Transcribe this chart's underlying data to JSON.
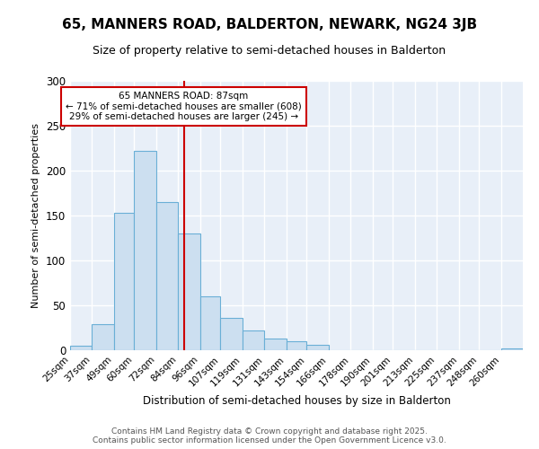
{
  "title": "65, MANNERS ROAD, BALDERTON, NEWARK, NG24 3JB",
  "subtitle": "Size of property relative to semi-detached houses in Balderton",
  "xlabel": "Distribution of semi-detached houses by size in Balderton",
  "ylabel": "Number of semi-detached properties",
  "bin_labels": [
    "25sqm",
    "37sqm",
    "49sqm",
    "60sqm",
    "72sqm",
    "84sqm",
    "96sqm",
    "107sqm",
    "119sqm",
    "131sqm",
    "143sqm",
    "154sqm",
    "166sqm",
    "178sqm",
    "190sqm",
    "201sqm",
    "213sqm",
    "225sqm",
    "237sqm",
    "248sqm",
    "260sqm"
  ],
  "bin_edges": [
    25,
    37,
    49,
    60,
    72,
    84,
    96,
    107,
    119,
    131,
    143,
    154,
    166,
    178,
    190,
    201,
    213,
    225,
    237,
    248,
    260,
    272
  ],
  "values": [
    5,
    29,
    153,
    222,
    165,
    130,
    60,
    36,
    22,
    13,
    10,
    6,
    0,
    0,
    0,
    0,
    0,
    0,
    0,
    0,
    2
  ],
  "bar_facecolor": "#ccdff0",
  "bar_edgecolor": "#6aafd6",
  "property_sqm": 87,
  "vline_color": "#cc0000",
  "annotation_title": "65 MANNERS ROAD: 87sqm",
  "annotation_line1": "← 71% of semi-detached houses are smaller (608)",
  "annotation_line2": "29% of semi-detached houses are larger (245) →",
  "annotation_box_color": "#cc0000",
  "ylim": [
    0,
    300
  ],
  "yticks": [
    0,
    50,
    100,
    150,
    200,
    250,
    300
  ],
  "bg_color": "#e8eff8",
  "grid_color": "#ffffff",
  "footer_line1": "Contains HM Land Registry data © Crown copyright and database right 2025.",
  "footer_line2": "Contains public sector information licensed under the Open Government Licence v3.0."
}
